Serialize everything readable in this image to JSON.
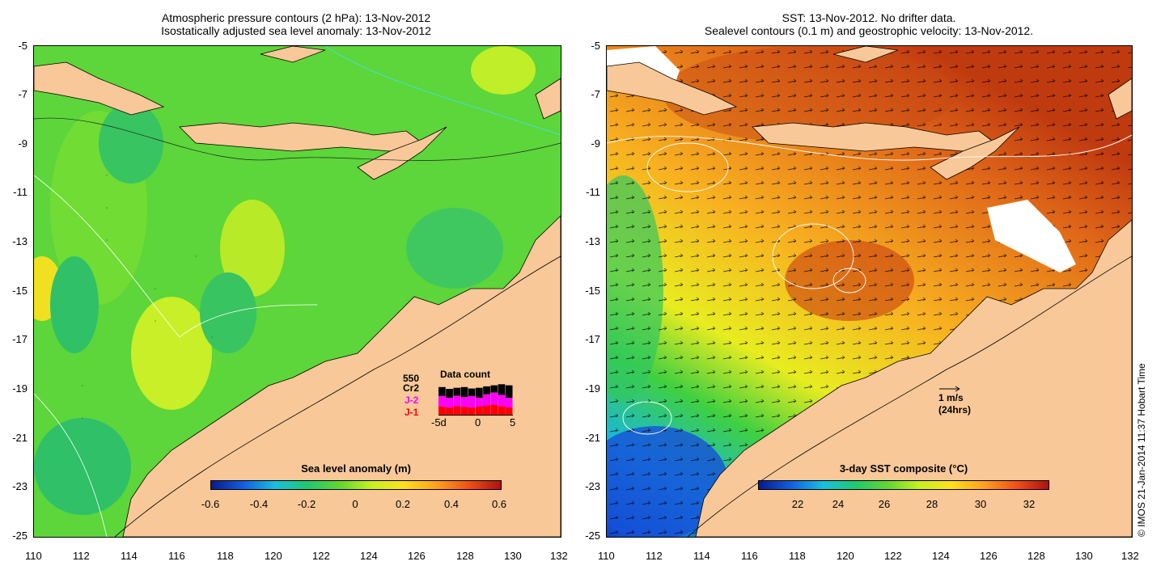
{
  "left_panel": {
    "title_line1": "Atmospheric pressure contours (2 hPa): 13-Nov-2012",
    "title_line2": "Isostatically adjusted sea level anomaly: 13-Nov-2012",
    "colorbar_title": "Sea level anomaly (m)",
    "colorbar_ticks": [
      "-0.6",
      "-0.4",
      "-0.2",
      "0",
      "0.2",
      "0.4",
      "0.6"
    ],
    "colorbar_colors": [
      "#0a1a8c",
      "#1060e0",
      "#18c0e0",
      "#20c870",
      "#60d830",
      "#c8f020",
      "#ffe020",
      "#ffa020",
      "#f05018",
      "#b01010"
    ],
    "data_count": {
      "title": "Data count",
      "max_label": "550",
      "series": [
        {
          "name": "Cr2",
          "color": "#000000",
          "values": [
            0.8,
            0.75,
            0.78,
            0.8,
            0.76,
            0.78,
            0.82,
            0.85,
            0.88,
            0.85
          ]
        },
        {
          "name": "J-2",
          "color": "#ff00ff",
          "values": [
            0.55,
            0.5,
            0.56,
            0.52,
            0.55,
            0.5,
            0.6,
            0.65,
            0.58,
            0.5
          ]
        },
        {
          "name": "J-1",
          "color": "#ff0000",
          "values": [
            0.25,
            0.22,
            0.26,
            0.24,
            0.22,
            0.25,
            0.28,
            0.3,
            0.26,
            0.22
          ]
        }
      ],
      "x_ticks": [
        "-5d",
        "0",
        "5"
      ]
    }
  },
  "right_panel": {
    "title_line1": "SST: 13-Nov-2012. No drifter data.",
    "title_line2": "Sealevel contours (0.1 m) and geostrophic velocity: 13-Nov-2012.",
    "colorbar_title": "3-day SST composite (°C)",
    "colorbar_ticks": [
      "22",
      "24",
      "26",
      "28",
      "30",
      "32"
    ],
    "colorbar_colors": [
      "#0a1a8c",
      "#1060e0",
      "#18c0e0",
      "#20c870",
      "#60d830",
      "#c8f020",
      "#ffe020",
      "#ffa020",
      "#f05018",
      "#b01010"
    ],
    "velocity_scale": {
      "line1": "1 m/s",
      "line2": "(24hrs)"
    }
  },
  "axes": {
    "x_ticks": [
      "110",
      "112",
      "114",
      "116",
      "118",
      "120",
      "122",
      "124",
      "126",
      "128",
      "130",
      "132"
    ],
    "y_ticks": [
      "-5",
      "-7",
      "-9",
      "-11",
      "-13",
      "-15",
      "-17",
      "-19",
      "-21",
      "-23",
      "-25"
    ]
  },
  "land_color": "#f8c898",
  "credit": "© IMOS 21-Jan-2014 11:37 Hobart Time"
}
